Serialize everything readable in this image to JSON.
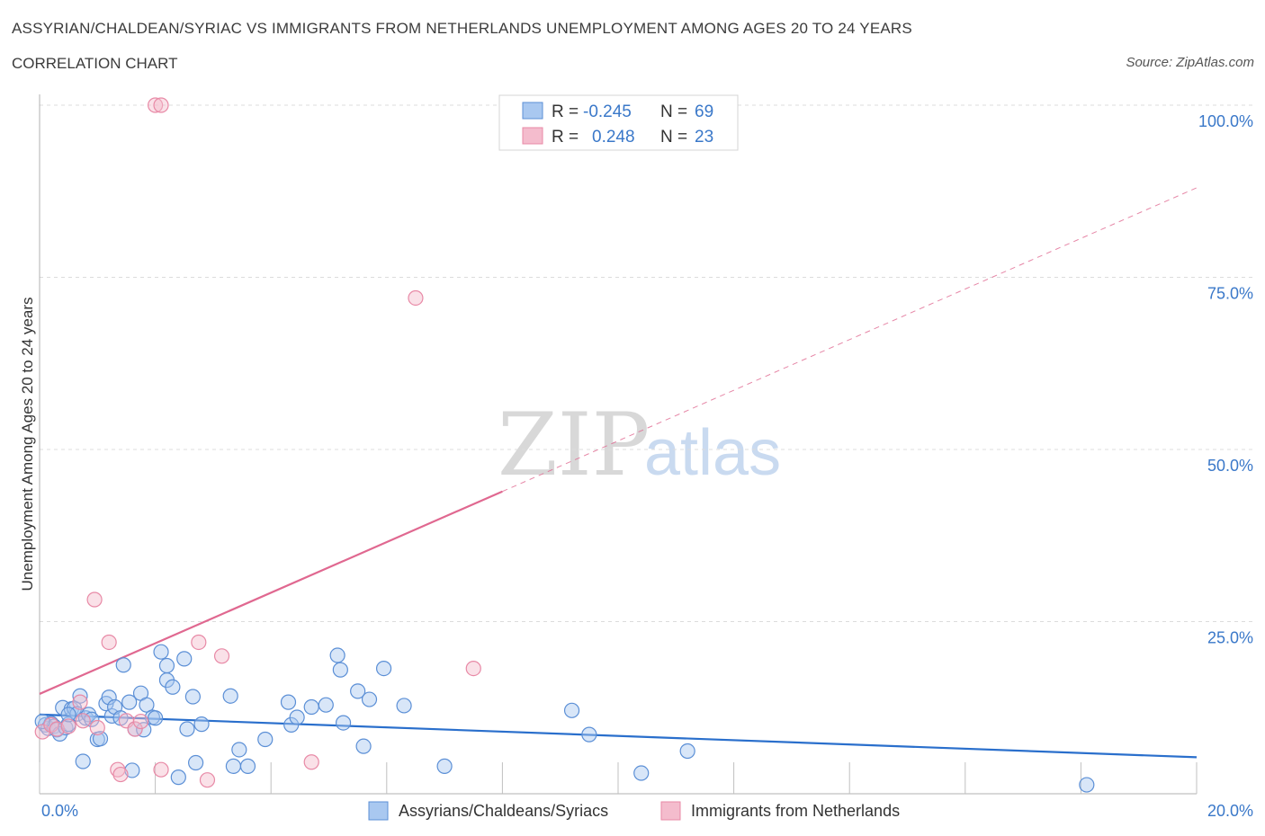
{
  "header": {
    "title": "ASSYRIAN/CHALDEAN/SYRIAC VS IMMIGRANTS FROM NETHERLANDS UNEMPLOYMENT AMONG AGES 20 TO 24 YEARS",
    "subtitle": "CORRELATION CHART",
    "source": "Source: ZipAtlas.com"
  },
  "watermark": {
    "zip": "ZIP",
    "atlas": "atlas"
  },
  "colors": {
    "blue": "#5b8fd6",
    "blue_fill": "#a9c8f0",
    "blue_line": "#2a6fcc",
    "pink": "#e889a6",
    "pink_fill": "#f4bccd",
    "pink_line": "#e06890",
    "grid": "#dcdcdc",
    "tick_text": "#3a78c9"
  },
  "legend_top": {
    "rows": [
      {
        "r_label": "R =",
        "r_value": "-0.245",
        "n_label": "N =",
        "n_value": "69",
        "series": "blue"
      },
      {
        "r_label": "R =",
        "r_value": "0.248",
        "n_label": "N =",
        "n_value": "23",
        "series": "pink"
      }
    ]
  },
  "legend_bottom": {
    "items": [
      {
        "label": "Assyrians/Chaldeans/Syriacs",
        "series": "blue"
      },
      {
        "label": "Immigrants from Netherlands",
        "series": "pink"
      }
    ]
  },
  "chart_data": {
    "type": "scatter",
    "title": "ASSYRIAN/CHALDEAN/SYRIAC VS IMMIGRANTS FROM NETHERLANDS UNEMPLOYMENT AMONG AGES 20 TO 24 YEARS",
    "subtitle": "CORRELATION CHART",
    "xlabel": "",
    "ylabel": "Unemployment Among Ages 20 to 24 years",
    "xlim": [
      0,
      20
    ],
    "ylim": [
      0,
      100
    ],
    "x_tick_labels": [
      "0.0%",
      "20.0%"
    ],
    "y_tick_values": [
      25,
      50,
      75,
      100
    ],
    "y_tick_labels": [
      "25.0%",
      "50.0%",
      "75.0%",
      "100.0%"
    ],
    "grid": true,
    "legend_position": "top-center",
    "series": [
      {
        "name": "Assyrians/Chaldeans/Syriacs",
        "color": "blue",
        "R": -0.245,
        "N": 69,
        "trend": {
          "x0": 0,
          "y0": 11.5,
          "x1": 20,
          "y1": 5.3,
          "dashed_from": null
        },
        "points": [
          [
            0.1,
            10.0
          ],
          [
            0.15,
            9.5
          ],
          [
            0.2,
            10.2
          ],
          [
            0.25,
            9.8
          ],
          [
            0.3,
            9.3
          ],
          [
            0.35,
            8.7
          ],
          [
            0.4,
            12.5
          ],
          [
            0.45,
            9.6
          ],
          [
            0.5,
            10.1
          ],
          [
            0.55,
            12.3
          ],
          [
            0.6,
            12.4
          ],
          [
            0.65,
            11.6
          ],
          [
            0.7,
            14.2
          ],
          [
            0.75,
            4.7
          ],
          [
            0.8,
            11.0
          ],
          [
            0.85,
            11.5
          ],
          [
            0.9,
            10.8
          ],
          [
            1.0,
            7.9
          ],
          [
            1.05,
            8.0
          ],
          [
            1.15,
            13.1
          ],
          [
            1.2,
            14.0
          ],
          [
            1.25,
            11.3
          ],
          [
            1.3,
            12.6
          ],
          [
            1.4,
            11.0
          ],
          [
            1.45,
            18.7
          ],
          [
            1.55,
            13.3
          ],
          [
            1.6,
            3.4
          ],
          [
            1.65,
            9.4
          ],
          [
            1.75,
            14.6
          ],
          [
            1.8,
            9.3
          ],
          [
            1.85,
            12.9
          ],
          [
            1.95,
            11.1
          ],
          [
            2.0,
            11.0
          ],
          [
            2.1,
            20.6
          ],
          [
            2.2,
            18.6
          ],
          [
            2.2,
            16.5
          ],
          [
            2.3,
            15.5
          ],
          [
            2.4,
            2.4
          ],
          [
            2.5,
            19.6
          ],
          [
            2.55,
            9.4
          ],
          [
            2.65,
            14.1
          ],
          [
            2.7,
            4.5
          ],
          [
            2.8,
            10.1
          ],
          [
            3.3,
            14.2
          ],
          [
            3.35,
            4.0
          ],
          [
            3.45,
            6.4
          ],
          [
            3.6,
            4.0
          ],
          [
            3.9,
            7.9
          ],
          [
            4.3,
            13.3
          ],
          [
            4.35,
            10.0
          ],
          [
            4.45,
            11.1
          ],
          [
            4.7,
            12.6
          ],
          [
            4.95,
            12.9
          ],
          [
            5.15,
            20.1
          ],
          [
            5.2,
            18.0
          ],
          [
            5.25,
            10.3
          ],
          [
            5.5,
            14.9
          ],
          [
            5.6,
            6.9
          ],
          [
            5.7,
            13.7
          ],
          [
            5.95,
            18.2
          ],
          [
            6.3,
            12.8
          ],
          [
            7.0,
            4.0
          ],
          [
            9.2,
            12.1
          ],
          [
            9.5,
            8.6
          ],
          [
            10.4,
            3.0
          ],
          [
            11.2,
            6.2
          ],
          [
            18.1,
            1.3
          ],
          [
            0.05,
            10.5
          ],
          [
            0.5,
            11.5
          ]
        ]
      },
      {
        "name": "Immigrants from Netherlands",
        "color": "pink",
        "R": 0.248,
        "N": 23,
        "trend": {
          "x0": 0,
          "y0": 14.5,
          "x1": 20,
          "y1": 88.0,
          "solid_until_x": 8.0
        },
        "points": [
          [
            0.05,
            9.0
          ],
          [
            0.2,
            10.0
          ],
          [
            0.3,
            9.4
          ],
          [
            0.5,
            9.8
          ],
          [
            0.7,
            13.3
          ],
          [
            0.75,
            10.6
          ],
          [
            0.95,
            28.2
          ],
          [
            1.0,
            9.6
          ],
          [
            1.2,
            22.0
          ],
          [
            1.35,
            3.5
          ],
          [
            1.4,
            2.8
          ],
          [
            1.5,
            10.6
          ],
          [
            1.65,
            9.4
          ],
          [
            1.75,
            10.5
          ],
          [
            2.0,
            100.0
          ],
          [
            2.1,
            100.0
          ],
          [
            2.1,
            3.5
          ],
          [
            2.75,
            22.0
          ],
          [
            2.9,
            2.0
          ],
          [
            3.15,
            20.0
          ],
          [
            4.7,
            4.6
          ],
          [
            6.5,
            72.0
          ],
          [
            7.5,
            18.2
          ]
        ]
      }
    ]
  }
}
